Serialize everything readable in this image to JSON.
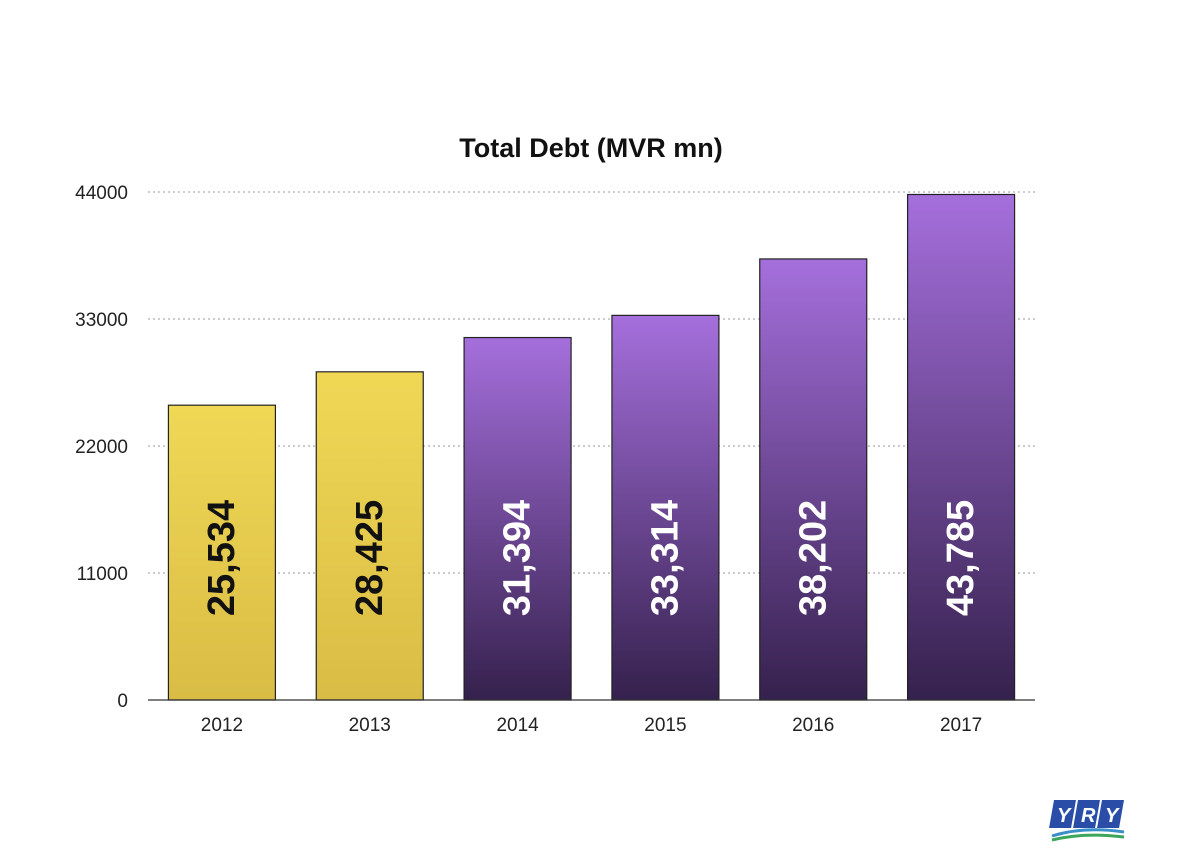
{
  "chart_data": {
    "type": "bar",
    "title": "Total Debt (MVR mn)",
    "xlabel": "",
    "ylabel": "",
    "categories": [
      "2012",
      "2013",
      "2014",
      "2015",
      "2016",
      "2017"
    ],
    "values": [
      25534,
      28425,
      31394,
      33314,
      38202,
      43785
    ],
    "data_labels": [
      "25,534",
      "28,425",
      "31,394",
      "33,314",
      "38,202",
      "43,785"
    ],
    "ylim": [
      0,
      44000
    ],
    "yticks": [
      0,
      11000,
      22000,
      33000,
      44000
    ],
    "ytick_labels": [
      "0",
      "11000",
      "22000",
      "33000",
      "44000"
    ],
    "grid": true,
    "legend": "none",
    "bar_colors": [
      "#e8cf4a",
      "#e8cf4a",
      "#7b4fb0",
      "#7b4fb0",
      "#7b4fb0",
      "#7b4fb0"
    ],
    "label_colors": [
      "#111111",
      "#111111",
      "#ffffff",
      "#ffffff",
      "#ffffff",
      "#ffffff"
    ]
  },
  "logo": {
    "text": "YRY",
    "icon": "yry-logo-icon"
  }
}
